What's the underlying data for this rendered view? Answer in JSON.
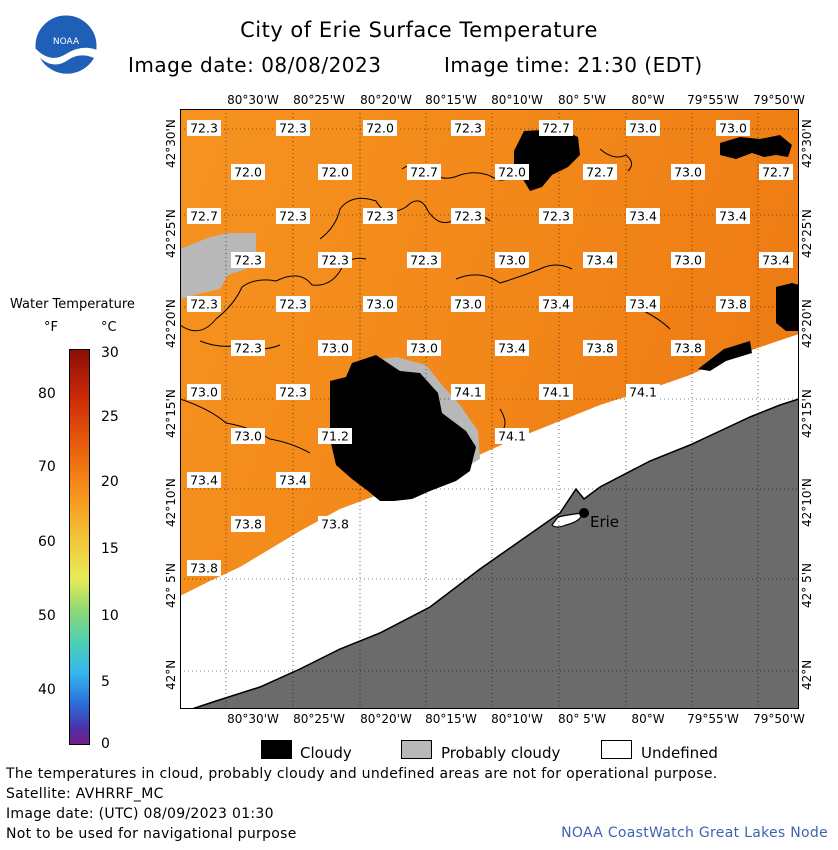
{
  "header": {
    "title": "City of Erie Surface Temperature",
    "image_date": "Image date: 08/08/2023",
    "image_time": "Image time: 21:30 (EDT)",
    "logo_text": "NOAA"
  },
  "map": {
    "top_lon_labels": [
      "80°30'W",
      "80°25'W",
      "80°20'W",
      "80°15'W",
      "80°10'W",
      "80° 5'W",
      "80°W",
      "79°55'W",
      "79°50'W"
    ],
    "bottom_lon_labels": [
      "80°30'W",
      "80°25'W",
      "80°20'W",
      "80°15'W",
      "80°10'W",
      "80° 5'W",
      "80°W",
      "79°55'W",
      "79°50'W"
    ],
    "lat_labels": [
      "42°30'N",
      "42°25'N",
      "42°20'N",
      "42°15'N",
      "42°10'N",
      "42° 5'N",
      "42°N"
    ],
    "city_label": "Erie",
    "temperatures": [
      "72.3",
      "72.3",
      "72.0",
      "72.3",
      "72.7",
      "73.0",
      "73.0",
      "72.0",
      "72.0",
      "72.7",
      "72.0",
      "72.7",
      "73.0",
      "72.7",
      "72.7",
      "72.3",
      "72.3",
      "72.3",
      "72.3",
      "73.4",
      "73.4",
      "72.3",
      "72.3",
      "72.3",
      "73.0",
      "73.4",
      "73.0",
      "73.4",
      "72.3",
      "72.3",
      "73.0",
      "73.0",
      "73.4",
      "73.4",
      "73.8",
      "72.3",
      "73.0",
      "73.0",
      "73.4",
      "73.8",
      "73.8",
      "73.0",
      "72.3",
      "74.1",
      "74.1",
      "74.1",
      "73.0",
      "71.2",
      "74.1",
      "73.4",
      "73.4",
      "73.8",
      "73.8",
      "73.8"
    ]
  },
  "scale": {
    "title": "Water Temperature",
    "unit_f": "°F",
    "unit_c": "°C",
    "f_labels": [
      "80",
      "70",
      "60",
      "50",
      "40"
    ],
    "c_labels": [
      "30",
      "25",
      "20",
      "15",
      "10",
      "5",
      "0"
    ]
  },
  "legend": {
    "cloudy": "Cloudy",
    "probably_cloudy": "Probably cloudy",
    "undefined": "Undefined",
    "colors": {
      "cloudy": "#000000",
      "probably_cloudy": "#b8b8b8",
      "undefined": "#ffffff",
      "land": "#6b6b6b",
      "water": "#f08a1c"
    }
  },
  "footer": {
    "note": "The temperatures in cloud, probably cloudy and undefined areas are not for operational purpose.",
    "satellite": "Satellite: AVHRRF_MC",
    "utc_date": "Image date: (UTC) 08/09/2023  01:30",
    "nav_warning": "Not to be used for navigational purpose",
    "credit": "NOAA CoastWatch Great Lakes Node"
  }
}
